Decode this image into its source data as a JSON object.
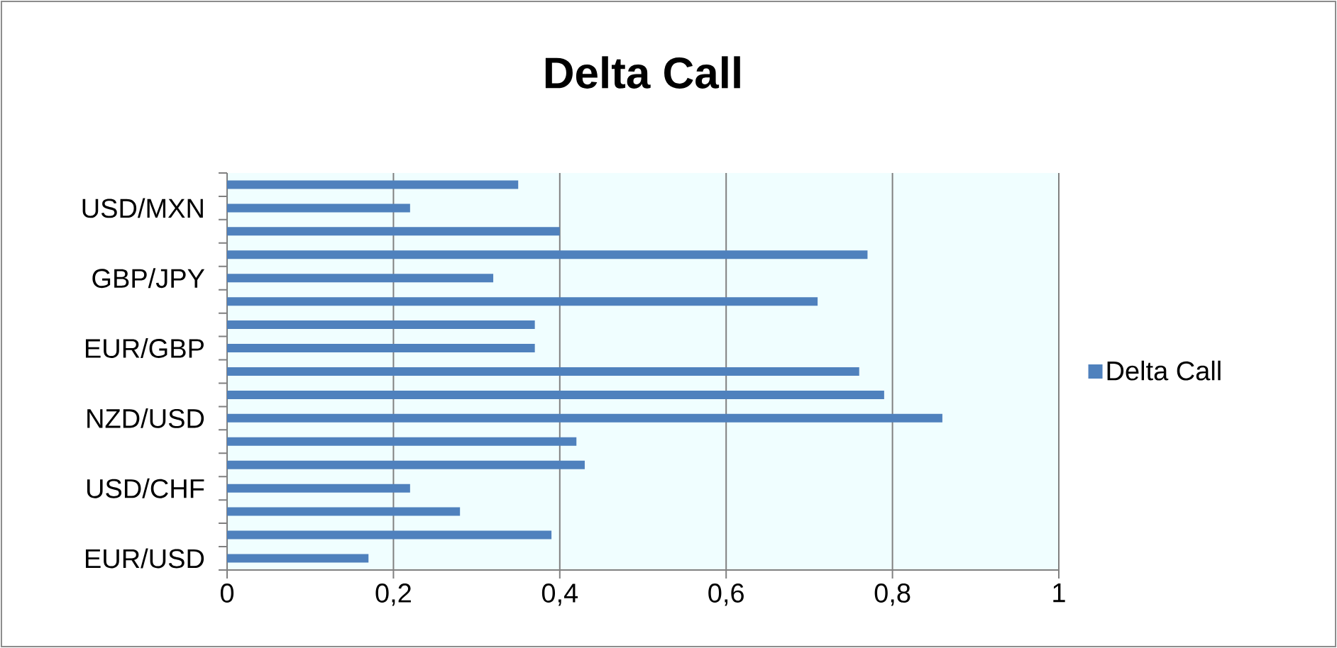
{
  "chart_data": {
    "type": "bar",
    "orientation": "horizontal",
    "title": "Delta Call",
    "categories": [
      null,
      "USD/MXN",
      null,
      null,
      "GBP/JPY",
      null,
      null,
      "EUR/GBP",
      null,
      null,
      "NZD/USD",
      null,
      null,
      "USD/CHF",
      null,
      null,
      "EUR/USD"
    ],
    "series": [
      {
        "name": "Delta Call",
        "color": "#4f81bd",
        "values": [
          0.35,
          0.22,
          0.4,
          0.77,
          0.32,
          0.71,
          0.37,
          0.37,
          0.76,
          0.79,
          0.86,
          0.42,
          0.43,
          0.22,
          0.28,
          0.39,
          0.17
        ]
      }
    ],
    "xlim": [
      0,
      1
    ],
    "xticks": [
      0,
      {
        "value": 0.2,
        "label": "0,2"
      },
      {
        "value": 0.4,
        "label": "0,4"
      },
      {
        "value": 0.6,
        "label": "0,6"
      },
      {
        "value": 0.8,
        "label": "0,8"
      },
      1
    ],
    "grid": "x",
    "legend": "right"
  }
}
